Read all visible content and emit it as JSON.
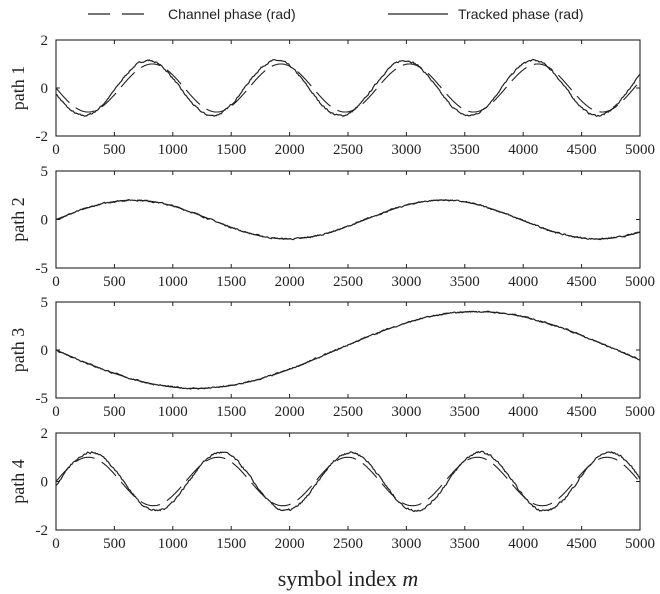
{
  "colors": {
    "line": "#222222",
    "axis": "#222222",
    "background": "#ffffff"
  },
  "legend": {
    "placement": "top",
    "channel_label": "Channel  phase (rad)",
    "tracked_label": "Tracked  phase (rad)"
  },
  "xlabel": {
    "text": "symbol index ",
    "var": "m"
  },
  "chart_data": [
    {
      "type": "line",
      "ylabel": "path 1",
      "ylim": [
        -2,
        2
      ],
      "yticks": [
        2,
        0,
        -2
      ],
      "xlim": [
        0,
        5000
      ],
      "xticks": [
        0,
        500,
        1000,
        1500,
        2000,
        2500,
        3000,
        3500,
        4000,
        4500,
        5000
      ],
      "grid": false,
      "series": [
        {
          "name": "Channel  phase (rad)",
          "style": "dashed",
          "kind": "sine",
          "amplitude": 1.0,
          "period": 1100,
          "phase_deg": 0,
          "sign": -1,
          "noise": 0
        },
        {
          "name": "Tracked  phase (rad)",
          "style": "solid",
          "kind": "sine",
          "amplitude": 1.15,
          "period": 1100,
          "phase_deg": 12,
          "sign": -1,
          "noise": 0.06
        }
      ]
    },
    {
      "type": "line",
      "ylabel": "path 2",
      "ylim": [
        -5,
        5
      ],
      "yticks": [
        5,
        0,
        -5
      ],
      "xlim": [
        0,
        5000
      ],
      "xticks": [
        0,
        500,
        1000,
        1500,
        2000,
        2500,
        3000,
        3500,
        4000,
        4500,
        5000
      ],
      "grid": false,
      "series": [
        {
          "name": "Channel  phase (rad)",
          "style": "dashed",
          "kind": "sine",
          "amplitude": 2.0,
          "period": 2650,
          "phase_deg": 0,
          "sign": 1,
          "noise": 0
        },
        {
          "name": "Tracked  phase (rad)",
          "style": "solid",
          "kind": "sine",
          "amplitude": 2.0,
          "period": 2650,
          "phase_deg": 0,
          "sign": 1,
          "noise": 0.12
        }
      ]
    },
    {
      "type": "line",
      "ylabel": "path 3",
      "ylim": [
        -5,
        5
      ],
      "yticks": [
        5,
        0,
        -5
      ],
      "xlim": [
        0,
        5000
      ],
      "xticks": [
        0,
        500,
        1000,
        1500,
        2000,
        2500,
        3000,
        3500,
        4000,
        4500,
        5000
      ],
      "grid": false,
      "series": [
        {
          "name": "Channel  phase (rad)",
          "style": "dashed",
          "kind": "sine",
          "amplitude": 4.0,
          "period": 4800,
          "phase_deg": 0,
          "sign": -1,
          "noise": 0
        },
        {
          "name": "Tracked  phase (rad)",
          "style": "solid",
          "kind": "sine",
          "amplitude": 4.0,
          "period": 4800,
          "phase_deg": 0,
          "sign": -1,
          "noise": 0.12
        }
      ]
    },
    {
      "type": "line",
      "ylabel": "path 4",
      "ylim": [
        -2,
        2
      ],
      "yticks": [
        2,
        0,
        -2
      ],
      "xlim": [
        0,
        5000
      ],
      "xticks": [
        0,
        500,
        1000,
        1500,
        2000,
        2500,
        3000,
        3500,
        4000,
        4500,
        5000
      ],
      "grid": false,
      "series": [
        {
          "name": "Channel  phase (rad)",
          "style": "dashed",
          "kind": "sine",
          "amplitude": 1.0,
          "period": 1110,
          "phase_deg": 0,
          "sign": 1,
          "noise": 0
        },
        {
          "name": "Tracked  phase (rad)",
          "style": "solid",
          "kind": "sine",
          "amplitude": 1.2,
          "period": 1110,
          "phase_deg": -8,
          "sign": 1,
          "noise": 0.07
        }
      ]
    }
  ]
}
